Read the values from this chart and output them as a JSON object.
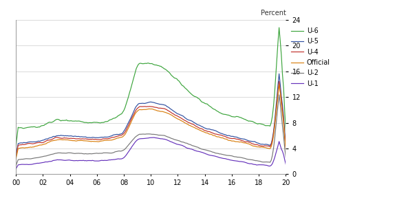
{
  "title": "Percent",
  "ylim": [
    0,
    24
  ],
  "yticks": [
    0,
    4,
    8,
    12,
    16,
    20,
    24
  ],
  "xtick_labels": [
    "00",
    "02",
    "04",
    "06",
    "08",
    "10",
    "12",
    "14",
    "16",
    "18",
    "20"
  ],
  "colors": {
    "U-6": "#3da53d",
    "U-5": "#3050a0",
    "U-4": "#c0302a",
    "Official": "#d98010",
    "U-2": "#777777",
    "U-1": "#6633bb"
  },
  "background": "#ffffff",
  "grid_color": "#cccccc",
  "linewidth": 0.85,
  "u6_keyframes_x": [
    0,
    6,
    12,
    24,
    36,
    48,
    60,
    72,
    84,
    96,
    108,
    120,
    132,
    144,
    156,
    168,
    180,
    192,
    204,
    216,
    228,
    234,
    238,
    240
  ],
  "u6_keyframes_y": [
    7.0,
    7.1,
    7.2,
    7.5,
    8.5,
    8.4,
    8.2,
    8.0,
    8.3,
    9.5,
    17.0,
    17.2,
    16.5,
    14.5,
    12.5,
    11.0,
    9.8,
    9.0,
    8.5,
    7.8,
    7.5,
    23.0,
    13.5,
    8.5
  ],
  "u5_keyframes_x": [
    0,
    6,
    12,
    24,
    36,
    48,
    60,
    72,
    84,
    96,
    108,
    120,
    132,
    144,
    156,
    168,
    180,
    192,
    204,
    216,
    228,
    234,
    238,
    240
  ],
  "u5_keyframes_y": [
    4.8,
    4.9,
    5.0,
    5.3,
    6.0,
    5.9,
    5.8,
    5.7,
    5.9,
    6.5,
    11.0,
    11.2,
    10.8,
    9.5,
    8.2,
    7.2,
    6.5,
    5.9,
    5.4,
    4.8,
    4.5,
    15.5,
    9.0,
    5.5
  ],
  "u4_keyframes_x": [
    0,
    6,
    12,
    24,
    36,
    48,
    60,
    72,
    84,
    96,
    108,
    120,
    132,
    144,
    156,
    168,
    180,
    192,
    204,
    216,
    228,
    234,
    238,
    240
  ],
  "u4_keyframes_y": [
    4.5,
    4.6,
    4.7,
    5.0,
    5.7,
    5.6,
    5.5,
    5.4,
    5.6,
    6.2,
    10.5,
    10.6,
    10.2,
    9.0,
    7.8,
    6.8,
    6.2,
    5.6,
    5.1,
    4.5,
    4.2,
    14.5,
    8.5,
    5.0
  ],
  "off_keyframes_x": [
    0,
    6,
    12,
    24,
    36,
    48,
    60,
    72,
    84,
    96,
    108,
    120,
    132,
    144,
    156,
    168,
    180,
    192,
    204,
    216,
    228,
    234,
    238,
    240
  ],
  "off_keyframes_y": [
    4.0,
    4.1,
    4.2,
    4.6,
    5.4,
    5.3,
    5.2,
    5.1,
    5.3,
    5.8,
    10.0,
    10.1,
    9.8,
    8.6,
    7.5,
    6.5,
    5.8,
    5.2,
    4.8,
    4.2,
    3.9,
    14.0,
    8.0,
    4.6
  ],
  "u2_keyframes_x": [
    0,
    6,
    12,
    24,
    36,
    48,
    60,
    72,
    84,
    96,
    108,
    120,
    132,
    144,
    156,
    168,
    180,
    192,
    204,
    216,
    228,
    234,
    238,
    240
  ],
  "u2_keyframes_y": [
    2.2,
    2.3,
    2.4,
    2.7,
    3.3,
    3.3,
    3.2,
    3.2,
    3.3,
    3.7,
    6.2,
    6.3,
    6.0,
    5.2,
    4.5,
    3.8,
    3.2,
    2.8,
    2.4,
    2.0,
    1.8,
    12.5,
    6.0,
    2.5
  ],
  "u1_keyframes_x": [
    0,
    6,
    12,
    24,
    36,
    48,
    60,
    72,
    84,
    96,
    108,
    120,
    132,
    144,
    156,
    168,
    180,
    192,
    204,
    216,
    228,
    234,
    238,
    240
  ],
  "u1_keyframes_y": [
    1.4,
    1.5,
    1.5,
    1.8,
    2.2,
    2.2,
    2.1,
    2.1,
    2.2,
    2.5,
    5.5,
    5.7,
    5.5,
    4.6,
    3.9,
    3.2,
    2.6,
    2.2,
    1.8,
    1.5,
    1.3,
    5.0,
    3.0,
    2.0
  ],
  "legend_entries": [
    "U-6",
    "U-5",
    "U-4",
    "Official",
    "U-2",
    "U-1"
  ]
}
